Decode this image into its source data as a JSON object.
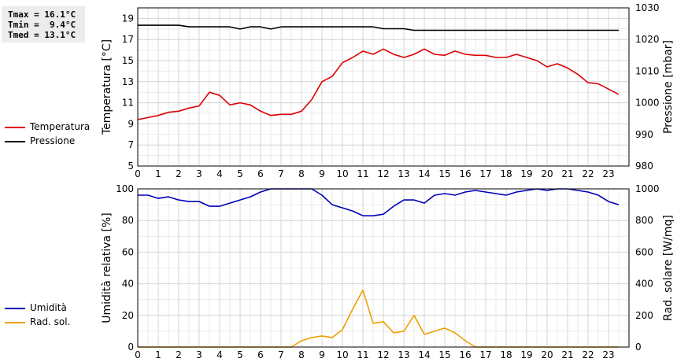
{
  "stats": {
    "tmax": "Tmax = 16.1°C",
    "tmin": "Tmin =  9.4°C",
    "tmed": "Tmed = 13.1°C"
  },
  "legend_top": [
    {
      "label": "Temperatura",
      "color": "#dd0000"
    },
    {
      "label": "Pressione",
      "color": "#000000"
    }
  ],
  "legend_bottom": [
    {
      "label": "Umidità",
      "color": "#0000bb"
    },
    {
      "label": "Rad. sol.",
      "color": "#f0a000"
    }
  ],
  "chart_data": [
    {
      "type": "line",
      "xlim": [
        0,
        24
      ],
      "x_ticks": [
        "0",
        "1",
        "2",
        "3",
        "4",
        "5",
        "6",
        "7",
        "8",
        "9",
        "10",
        "11",
        "12",
        "13",
        "14",
        "15",
        "16",
        "17",
        "18",
        "19",
        "20",
        "21",
        "22",
        "23"
      ],
      "grid": true,
      "ylabel": "Temperatura [°C]",
      "ylim": [
        5,
        20
      ],
      "y_ticks": [
        "5",
        "7",
        "9",
        "11",
        "13",
        "15",
        "17",
        "19"
      ],
      "y2label": "Pressione [mbar]",
      "y2lim": [
        980,
        1030
      ],
      "y2_ticks": [
        "980",
        "990",
        "1000",
        "1010",
        "1020",
        "1030"
      ],
      "series": [
        {
          "name": "Temperatura",
          "axis": "left",
          "color": "#dd0000",
          "x": [
            0,
            0.5,
            1,
            1.5,
            2,
            2.5,
            3,
            3.5,
            4,
            4.5,
            5,
            5.5,
            6,
            6.5,
            7,
            7.5,
            8,
            8.5,
            9,
            9.5,
            10,
            10.5,
            11,
            11.5,
            12,
            12.5,
            13,
            13.5,
            14,
            14.5,
            15,
            15.5,
            16,
            16.5,
            17,
            17.5,
            18,
            18.5,
            19,
            19.5,
            20,
            20.5,
            21,
            21.5,
            22,
            22.5,
            23,
            23.5
          ],
          "values": [
            9.4,
            9.6,
            9.8,
            10.1,
            10.2,
            10.5,
            10.7,
            12.0,
            11.7,
            10.8,
            11.0,
            10.8,
            10.2,
            9.8,
            9.9,
            9.9,
            10.2,
            11.3,
            13.0,
            13.5,
            14.8,
            15.3,
            15.9,
            15.6,
            16.1,
            15.6,
            15.3,
            15.6,
            16.1,
            15.6,
            15.5,
            15.9,
            15.6,
            15.5,
            15.5,
            15.3,
            15.3,
            15.6,
            15.3,
            15.0,
            14.4,
            14.7,
            14.3,
            13.7,
            12.9,
            12.8,
            12.3,
            11.8
          ]
        },
        {
          "name": "Pressione",
          "axis": "right",
          "color": "#000000",
          "x": [
            0,
            0.5,
            1,
            1.5,
            2,
            2.5,
            3,
            3.5,
            4,
            4.5,
            5,
            5.5,
            6,
            6.5,
            7,
            7.5,
            8,
            8.5,
            9,
            9.5,
            10,
            10.5,
            11,
            11.5,
            12,
            12.5,
            13,
            13.5,
            14,
            14.5,
            15,
            15.5,
            16,
            16.5,
            17,
            17.5,
            18,
            18.5,
            19,
            19.5,
            20,
            20.5,
            21,
            21.5,
            22,
            22.5,
            23,
            23.5
          ],
          "values": [
            1024.5,
            1024.5,
            1024.5,
            1024.5,
            1024.5,
            1024.0,
            1024.0,
            1024.0,
            1024.0,
            1024.0,
            1023.3,
            1024.0,
            1024.0,
            1023.3,
            1024.0,
            1024.0,
            1024.0,
            1024.0,
            1024.0,
            1024.0,
            1024.0,
            1024.0,
            1024.0,
            1024.0,
            1023.4,
            1023.4,
            1023.4,
            1022.9,
            1022.9,
            1022.9,
            1022.9,
            1022.9,
            1022.9,
            1022.9,
            1022.9,
            1022.9,
            1022.9,
            1022.9,
            1022.9,
            1022.9,
            1022.9,
            1022.9,
            1022.9,
            1022.9,
            1022.9,
            1022.9,
            1022.9,
            1022.9
          ]
        }
      ]
    },
    {
      "type": "line",
      "xlim": [
        0,
        24
      ],
      "x_ticks": [
        "0",
        "1",
        "2",
        "3",
        "4",
        "5",
        "6",
        "7",
        "8",
        "9",
        "10",
        "11",
        "12",
        "13",
        "14",
        "15",
        "16",
        "17",
        "18",
        "19",
        "20",
        "21",
        "22",
        "23"
      ],
      "grid": true,
      "ylabel": "Umidità relativa [%]",
      "ylim": [
        0,
        100
      ],
      "y_ticks": [
        "0",
        "20",
        "40",
        "60",
        "80",
        "100"
      ],
      "y2label": "Rad. solare [W/mq]",
      "y2lim": [
        0,
        1000
      ],
      "y2_ticks": [
        "0",
        "200",
        "400",
        "600",
        "800",
        "1000"
      ],
      "series": [
        {
          "name": "Umidità",
          "axis": "left",
          "color": "#0000bb",
          "x": [
            0,
            0.5,
            1,
            1.5,
            2,
            2.5,
            3,
            3.5,
            4,
            4.5,
            5,
            5.5,
            6,
            6.5,
            7,
            7.5,
            8,
            8.5,
            9,
            9.5,
            10,
            10.5,
            11,
            11.5,
            12,
            12.5,
            13,
            13.5,
            14,
            14.5,
            15,
            15.5,
            16,
            16.5,
            17,
            17.5,
            18,
            18.5,
            19,
            19.5,
            20,
            20.5,
            21,
            21.5,
            22,
            22.5,
            23,
            23.5
          ],
          "values": [
            96,
            96,
            94,
            95,
            93,
            92,
            92,
            89,
            89,
            91,
            93,
            95,
            98,
            100,
            100,
            100,
            100,
            100,
            96,
            90,
            88,
            86,
            83,
            83,
            84,
            89,
            93,
            93,
            91,
            96,
            97,
            96,
            98,
            99,
            98,
            97,
            96,
            98,
            99,
            100,
            99,
            100,
            100,
            99,
            98,
            96,
            92,
            90
          ]
        },
        {
          "name": "Rad. sol.",
          "axis": "right",
          "color": "#f0a000",
          "x": [
            0,
            0.5,
            1,
            1.5,
            2,
            2.5,
            3,
            3.5,
            4,
            4.5,
            5,
            5.5,
            6,
            6.5,
            7,
            7.5,
            8,
            8.5,
            9,
            9.5,
            10,
            10.5,
            11,
            11.5,
            12,
            12.5,
            13,
            13.5,
            14,
            14.5,
            15,
            15.5,
            16,
            16.5,
            17,
            17.5,
            18,
            18.5,
            19,
            19.5,
            20,
            20.5,
            21,
            21.5,
            22,
            22.5,
            23,
            23.5
          ],
          "values": [
            0,
            0,
            0,
            0,
            0,
            0,
            0,
            0,
            0,
            0,
            0,
            0,
            0,
            0,
            0,
            0,
            40,
            60,
            70,
            60,
            110,
            240,
            360,
            150,
            160,
            90,
            100,
            200,
            80,
            100,
            120,
            90,
            40,
            0,
            0,
            0,
            0,
            0,
            0,
            0,
            0,
            0,
            0,
            0,
            0,
            0,
            0,
            0
          ]
        }
      ]
    }
  ]
}
